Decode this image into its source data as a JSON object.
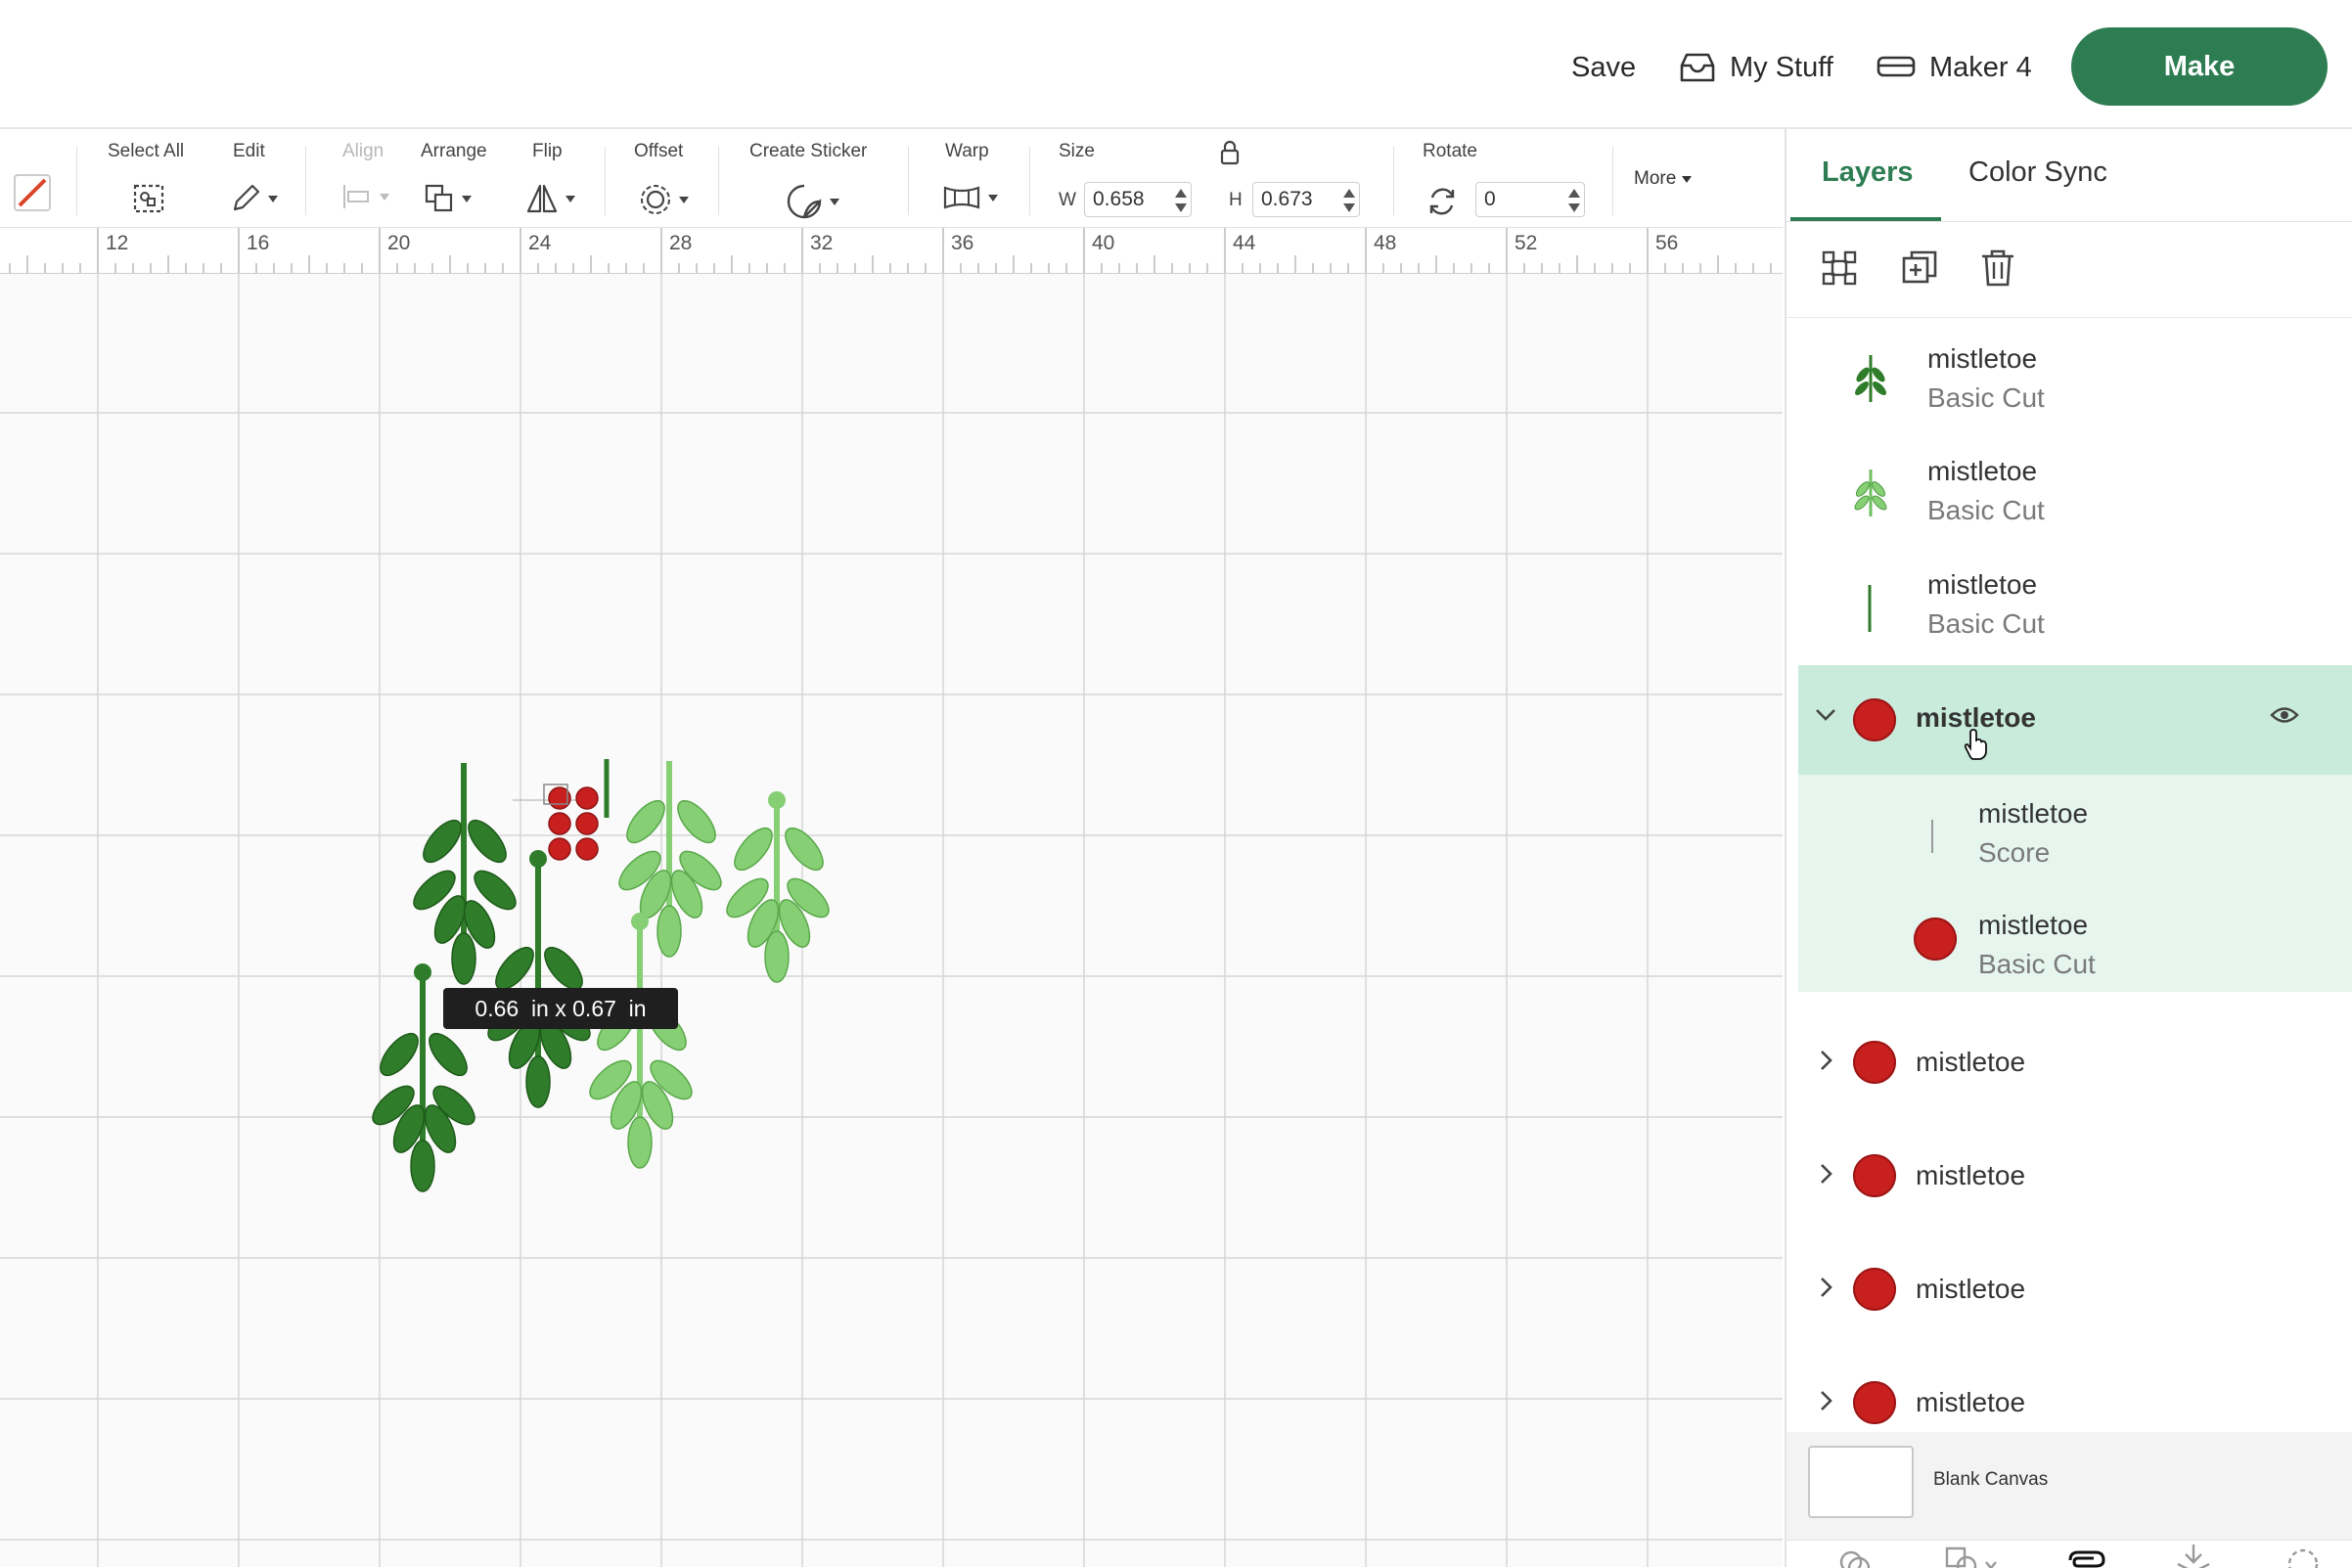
{
  "header": {
    "save_label": "Save",
    "mystuff_label": "My Stuff",
    "machine_label": "Maker 4",
    "make_label": "Make"
  },
  "toolbar": {
    "select_all": "Select All",
    "edit": "Edit",
    "align": "Align",
    "arrange": "Arrange",
    "flip": "Flip",
    "offset": "Offset",
    "create_sticker": "Create Sticker",
    "warp": "Warp",
    "size": "Size",
    "w_label": "W",
    "w_value": "0.658",
    "h_label": "H",
    "h_value": "0.673",
    "rotate": "Rotate",
    "rotate_value": "0",
    "more": "More"
  },
  "ruler": {
    "labels": [
      "12",
      "16",
      "20",
      "24",
      "28",
      "32",
      "36",
      "40",
      "44",
      "48",
      "52",
      "56"
    ]
  },
  "canvas": {
    "size_tooltip": "0.66  in x 0.67  in"
  },
  "panel": {
    "tabs": {
      "layers": "Layers",
      "color_sync": "Color Sync"
    },
    "layers": [
      {
        "name": "mistletoe",
        "op": "Basic Cut",
        "thumb": "dark-sprig-icon"
      },
      {
        "name": "mistletoe",
        "op": "Basic Cut",
        "thumb": "light-sprig-icon"
      },
      {
        "name": "mistletoe",
        "op": "Basic Cut",
        "thumb": "stem-line-icon"
      },
      {
        "name": "mistletoe",
        "expanded": true,
        "thumb": "red-berry-icon",
        "children": [
          {
            "name": "mistletoe",
            "op": "Score",
            "thumb": "score-line-icon"
          },
          {
            "name": "mistletoe",
            "op": "Basic Cut",
            "thumb": "red-berry-icon"
          }
        ]
      },
      {
        "name": "mistletoe",
        "thumb": "red-berry-icon"
      },
      {
        "name": "mistletoe",
        "thumb": "red-berry-icon"
      },
      {
        "name": "mistletoe",
        "thumb": "red-berry-icon"
      },
      {
        "name": "mistletoe",
        "thumb": "red-berry-icon"
      }
    ],
    "blank_canvas": "Blank Canvas"
  },
  "colors": {
    "accent": "#2e7d52",
    "selected_row": "#c8ebdc",
    "child_rows": "#e6f6ef",
    "berry_red": "#c8201f",
    "leaf_dark": "#2f7d2a",
    "leaf_light": "#86cf75"
  }
}
